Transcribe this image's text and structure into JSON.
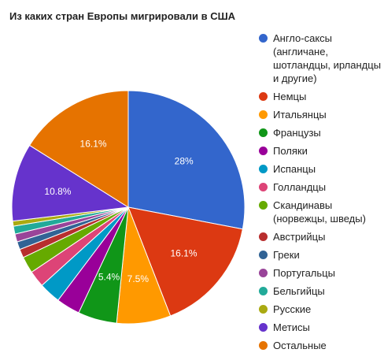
{
  "chart_data": {
    "type": "pie",
    "title": "Из каких стран Европы мигрировали в США",
    "legend_position": "right",
    "slices": [
      {
        "name": "Англо-саксы (англичане, шотландцы, ирландцы и другие)",
        "value": 28.0,
        "label": "28%",
        "color": "#3366cc"
      },
      {
        "name": "Немцы",
        "value": 16.1,
        "label": "16.1%",
        "color": "#dc3912"
      },
      {
        "name": "Итальянцы",
        "value": 7.5,
        "label": "7.5%",
        "color": "#ff9900"
      },
      {
        "name": "Французы",
        "value": 5.4,
        "label": "5.4%",
        "color": "#109618"
      },
      {
        "name": "Поляки",
        "value": 3.3,
        "label": "",
        "color": "#990099"
      },
      {
        "name": "Испанцы",
        "value": 3.0,
        "label": "",
        "color": "#0099c6"
      },
      {
        "name": "Голландцы",
        "value": 2.3,
        "label": "",
        "color": "#dd4477"
      },
      {
        "name": "Скандинавы (норвежцы, шведы)",
        "value": 2.3,
        "label": "",
        "color": "#66aa00"
      },
      {
        "name": "Австрийцы",
        "value": 1.2,
        "label": "",
        "color": "#b82e2e"
      },
      {
        "name": "Греки",
        "value": 1.1,
        "label": "",
        "color": "#316395"
      },
      {
        "name": "Португальцы",
        "value": 1.1,
        "label": "",
        "color": "#994499"
      },
      {
        "name": "Бельгийцы",
        "value": 1.1,
        "label": "",
        "color": "#22aa99"
      },
      {
        "name": "Русские",
        "value": 0.7,
        "label": "",
        "color": "#aaaa11"
      },
      {
        "name": "Метисы",
        "value": 10.8,
        "label": "10.8%",
        "color": "#6633cc"
      },
      {
        "name": "Остальные",
        "value": 16.1,
        "label": "16.1%",
        "color": "#e67300"
      }
    ]
  }
}
